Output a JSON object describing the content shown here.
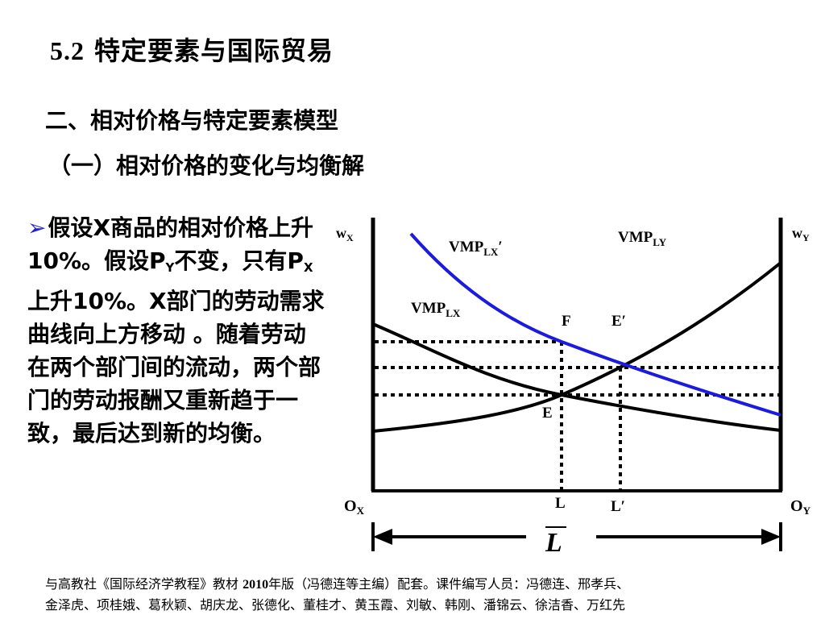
{
  "slide": {
    "section_number": "5.2",
    "section_title": "特定要素与国际贸易",
    "heading": "二、相对价格与特定要素模型",
    "subheading": "（一）相对价格的变化与均衡解"
  },
  "body": {
    "bullet_glyph": "➢",
    "part1": "假设X商品的相对价格上升10%。假设P",
    "sub1": "Y",
    "part2": "不变，只有P",
    "sub2": "X",
    "part3": "上升10%。X部门的劳动需求曲线向上方移动 。随着劳动在两个部门间的流动，两个部门的劳动报酬又重新趋于一致，最后达到新的均衡。"
  },
  "diagram": {
    "wx": {
      "main": "w",
      "sub": "X"
    },
    "wy": {
      "main": "w",
      "sub": "Y"
    },
    "ox": {
      "main": "O",
      "sub": "X"
    },
    "oy": {
      "main": "O",
      "sub": "Y"
    },
    "vmp_lx_prime": {
      "main": "VMP",
      "sub": "LX",
      "suffix": "′"
    },
    "vmp_ly": {
      "main": "VMP",
      "sub": "LY"
    },
    "vmp_lx": {
      "main": "VMP",
      "sub": "LX"
    },
    "point_f": "F",
    "point_e_prime": "E′",
    "point_e": "E",
    "label_l": "L",
    "label_l_prime": "L′",
    "total_labor": "L",
    "colors": {
      "shifted_curve": "#1a1ae0",
      "curves": "#000000"
    }
  },
  "footer": {
    "line1_a": "与高教社《国际经济学教程》教材 ",
    "year": "2010",
    "line1_b": "年版（冯德连等主编）配套。课件编写人员：冯德连、邢孝兵、",
    "line2": "金泽虎、项桂娥、葛秋颖、胡庆龙、张德化、董桂才、黄玉霞、刘敏、韩刚、潘锦云、徐洁香、万红先"
  }
}
